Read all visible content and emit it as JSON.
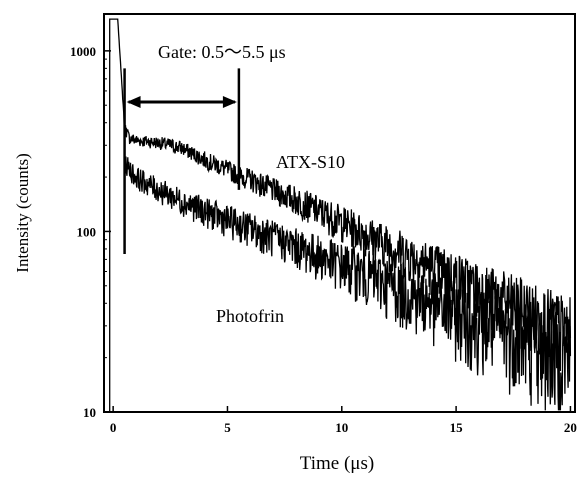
{
  "chart_data": {
    "type": "line",
    "title": "",
    "xlabel": "Time (μs)",
    "ylabel": "Intensity (counts)",
    "xlim": [
      -0.4,
      20.2
    ],
    "ylim": [
      10,
      1600
    ],
    "yscale": "log",
    "grid": false,
    "x_ticks": [
      0,
      5,
      10,
      15,
      20
    ],
    "x_tick_labels": [
      "0",
      "5",
      "10",
      "15",
      "20"
    ],
    "y_ticks": [
      10,
      100,
      1000
    ],
    "y_tick_labels": [
      "10",
      "100",
      "1000"
    ],
    "annotations": {
      "gate": "Gate: 0.5～5.5 μs",
      "gate_range": [
        0.5,
        5.5
      ],
      "atx_label": "ATX-S10",
      "photofrin_label": "Photofrin"
    },
    "series": [
      {
        "name": "ATX-S10",
        "x": [
          0.0,
          0.2,
          0.4,
          0.5,
          0.7,
          1.0,
          1.5,
          2.0,
          2.5,
          3.0,
          3.5,
          4.0,
          4.5,
          5.0,
          5.5,
          6.0,
          6.5,
          7.0,
          8.0,
          9.0,
          10.0,
          11.0,
          12.0,
          13.0,
          14.0,
          15.0,
          16.0,
          17.0,
          18.0,
          19.0,
          20.0
        ],
        "y": [
          1500,
          1500,
          600,
          380,
          330,
          320,
          315,
          310,
          300,
          290,
          270,
          250,
          235,
          220,
          205,
          195,
          182,
          170,
          150,
          130,
          113,
          98,
          85,
          74,
          64,
          56,
          48,
          42,
          37,
          32,
          28
        ],
        "noise_cv": [
          0,
          0,
          0,
          0.05,
          0.05,
          0.05,
          0.05,
          0.05,
          0.06,
          0.06,
          0.06,
          0.07,
          0.07,
          0.08,
          0.08,
          0.09,
          0.1,
          0.1,
          0.12,
          0.13,
          0.15,
          0.16,
          0.18,
          0.2,
          0.22,
          0.24,
          0.26,
          0.28,
          0.3,
          0.32,
          0.34
        ]
      },
      {
        "name": "Photofrin",
        "x": [
          0.5,
          1.0,
          2.0,
          3.0,
          4.0,
          5.0,
          6.0,
          7.0,
          8.0,
          9.0,
          10.0,
          11.0,
          12.0,
          13.0,
          14.0,
          15.0,
          16.0,
          17.0,
          18.0,
          19.0,
          20.0
        ],
        "y": [
          240,
          200,
          170,
          148,
          130,
          116,
          104,
          93,
          83,
          74,
          66,
          59,
          52,
          46,
          41,
          36,
          32,
          29,
          26,
          23,
          21
        ],
        "noise_cv": [
          0.08,
          0.09,
          0.1,
          0.11,
          0.12,
          0.13,
          0.14,
          0.15,
          0.16,
          0.18,
          0.2,
          0.22,
          0.24,
          0.26,
          0.28,
          0.3,
          0.32,
          0.34,
          0.36,
          0.38,
          0.4
        ]
      }
    ]
  }
}
